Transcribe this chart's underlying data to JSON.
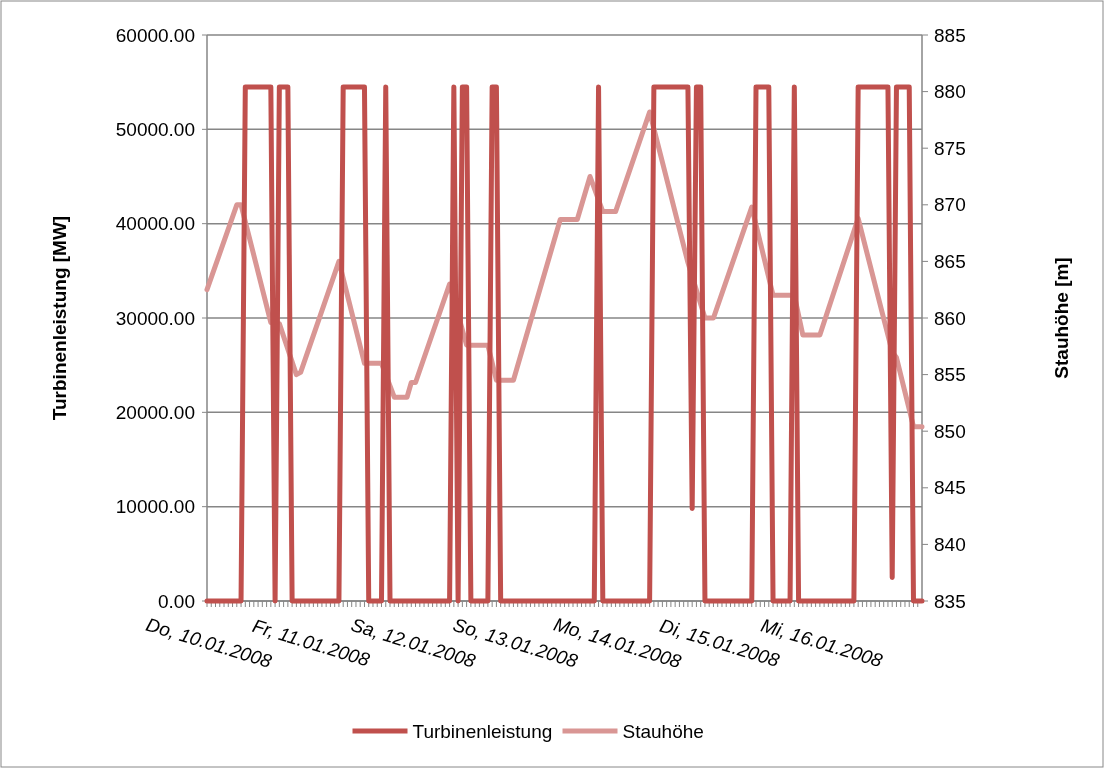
{
  "chart_data": {
    "type": "line",
    "ylabel": "Turbinenleistung [MW]",
    "y2label": "Stauhöhe [m]",
    "xlim": [
      "2008-01-10T00:00",
      "2008-01-17T00:00"
    ],
    "xticks": [
      {
        "value": "2008-01-10",
        "label": "Do, 10.01.2008"
      },
      {
        "value": "2008-01-10T01:00",
        "label": null
      },
      {
        "value": "2008-01-10T02:00",
        "label": null
      },
      {
        "value": "2008-01-10T03:00",
        "label": null
      },
      {
        "value": "2008-01-10T04:00",
        "label": null
      },
      {
        "value": "2008-01-10T05:00",
        "label": null
      },
      {
        "value": "2008-01-10T06:00",
        "label": null
      },
      {
        "value": "2008-01-10T07:00",
        "label": null
      },
      {
        "value": "2008-01-10T08:00",
        "label": null
      },
      {
        "value": "2008-01-10T09:00",
        "label": null
      },
      {
        "value": "2008-01-10T10:00",
        "label": null
      },
      {
        "value": "2008-01-10T11:00",
        "label": null
      },
      {
        "value": "2008-01-10T12:00",
        "label": null
      },
      {
        "value": "2008-01-10T13:00",
        "label": null
      },
      {
        "value": "2008-01-10T14:00",
        "label": null
      },
      {
        "value": "2008-01-10T15:00",
        "label": null
      },
      {
        "value": "2008-01-10T16:00",
        "label": null
      },
      {
        "value": "2008-01-10T17:00",
        "label": null
      },
      {
        "value": "2008-01-10T18:00",
        "label": null
      },
      {
        "value": "2008-01-10T19:00",
        "label": null
      },
      {
        "value": "2008-01-10T20:00",
        "label": null
      },
      {
        "value": "2008-01-10T21:00",
        "label": null
      },
      {
        "value": "2008-01-10T22:00",
        "label": null
      },
      {
        "value": "2008-01-10T23:00",
        "label": null
      },
      {
        "value": "2008-01-11",
        "label": "Fr, 11.01.2008"
      },
      {
        "value": "2008-01-11T01:00",
        "label": null
      },
      {
        "value": "2008-01-11T02:00",
        "label": null
      },
      {
        "value": "2008-01-11T03:00",
        "label": null
      },
      {
        "value": "2008-01-11T04:00",
        "label": null
      },
      {
        "value": "2008-01-11T05:00",
        "label": null
      },
      {
        "value": "2008-01-11T06:00",
        "label": null
      },
      {
        "value": "2008-01-11T07:00",
        "label": null
      },
      {
        "value": "2008-01-11T08:00",
        "label": null
      },
      {
        "value": "2008-01-11T09:00",
        "label": null
      },
      {
        "value": "2008-01-11T10:00",
        "label": null
      },
      {
        "value": "2008-01-11T11:00",
        "label": null
      },
      {
        "value": "2008-01-11T12:00",
        "label": null
      },
      {
        "value": "2008-01-11T13:00",
        "label": null
      },
      {
        "value": "2008-01-11T14:00",
        "label": null
      },
      {
        "value": "2008-01-11T15:00",
        "label": null
      },
      {
        "value": "2008-01-11T16:00",
        "label": null
      },
      {
        "value": "2008-01-11T17:00",
        "label": null
      },
      {
        "value": "2008-01-11T18:00",
        "label": null
      },
      {
        "value": "2008-01-11T19:00",
        "label": null
      },
      {
        "value": "2008-01-11T20:00",
        "label": null
      },
      {
        "value": "2008-01-11T21:00",
        "label": null
      },
      {
        "value": "2008-01-11T22:00",
        "label": null
      },
      {
        "value": "2008-01-11T23:00",
        "label": null
      },
      {
        "value": "2008-01-12",
        "label": "Sa, 12.01.2008"
      },
      {
        "value": "2008-01-12T01:00",
        "label": null
      },
      {
        "value": "2008-01-12T02:00",
        "label": null
      },
      {
        "value": "2008-01-12T03:00",
        "label": null
      },
      {
        "value": "2008-01-12T04:00",
        "label": null
      },
      {
        "value": "2008-01-12T05:00",
        "label": null
      },
      {
        "value": "2008-01-12T06:00",
        "label": null
      },
      {
        "value": "2008-01-12T07:00",
        "label": null
      },
      {
        "value": "2008-01-12T08:00",
        "label": null
      },
      {
        "value": "2008-01-12T09:00",
        "label": null
      },
      {
        "value": "2008-01-12T10:00",
        "label": null
      },
      {
        "value": "2008-01-12T11:00",
        "label": null
      },
      {
        "value": "2008-01-12T12:00",
        "label": null
      },
      {
        "value": "2008-01-12T13:00",
        "label": null
      },
      {
        "value": "2008-01-12T14:00",
        "label": null
      },
      {
        "value": "2008-01-12T15:00",
        "label": null
      },
      {
        "value": "2008-01-12T16:00",
        "label": null
      },
      {
        "value": "2008-01-12T17:00",
        "label": null
      },
      {
        "value": "2008-01-12T18:00",
        "label": null
      },
      {
        "value": "2008-01-12T19:00",
        "label": null
      },
      {
        "value": "2008-01-12T20:00",
        "label": null
      },
      {
        "value": "2008-01-12T21:00",
        "label": null
      },
      {
        "value": "2008-01-12T22:00",
        "label": null
      },
      {
        "value": "2008-01-12T23:00",
        "label": null
      },
      {
        "value": "2008-01-13",
        "label": "So, 13.01.2008"
      },
      {
        "value": "2008-01-13T01:00",
        "label": null
      },
      {
        "value": "2008-01-13T02:00",
        "label": null
      },
      {
        "value": "2008-01-13T03:00",
        "label": null
      },
      {
        "value": "2008-01-13T04:00",
        "label": null
      },
      {
        "value": "2008-01-13T05:00",
        "label": null
      },
      {
        "value": "2008-01-13T06:00",
        "label": null
      },
      {
        "value": "2008-01-13T07:00",
        "label": null
      },
      {
        "value": "2008-01-13T08:00",
        "label": null
      },
      {
        "value": "2008-01-13T09:00",
        "label": null
      },
      {
        "value": "2008-01-13T10:00",
        "label": null
      },
      {
        "value": "2008-01-13T11:00",
        "label": null
      },
      {
        "value": "2008-01-13T12:00",
        "label": null
      },
      {
        "value": "2008-01-13T13:00",
        "label": null
      },
      {
        "value": "2008-01-13T14:00",
        "label": null
      },
      {
        "value": "2008-01-13T15:00",
        "label": null
      },
      {
        "value": "2008-01-13T16:00",
        "label": null
      },
      {
        "value": "2008-01-13T17:00",
        "label": null
      },
      {
        "value": "2008-01-13T18:00",
        "label": null
      },
      {
        "value": "2008-01-13T19:00",
        "label": null
      },
      {
        "value": "2008-01-13T20:00",
        "label": null
      },
      {
        "value": "2008-01-13T21:00",
        "label": null
      },
      {
        "value": "2008-01-13T22:00",
        "label": null
      },
      {
        "value": "2008-01-13T23:00",
        "label": null
      },
      {
        "value": "2008-01-14",
        "label": "Mo, 14.01.2008"
      },
      {
        "value": "2008-01-14T01:00",
        "label": null
      },
      {
        "value": "2008-01-14T02:00",
        "label": null
      },
      {
        "value": "2008-01-14T03:00",
        "label": null
      },
      {
        "value": "2008-01-14T04:00",
        "label": null
      },
      {
        "value": "2008-01-14T05:00",
        "label": null
      },
      {
        "value": "2008-01-14T06:00",
        "label": null
      },
      {
        "value": "2008-01-14T07:00",
        "label": null
      },
      {
        "value": "2008-01-14T08:00",
        "label": null
      },
      {
        "value": "2008-01-14T09:00",
        "label": null
      },
      {
        "value": "2008-01-14T10:00",
        "label": null
      },
      {
        "value": "2008-01-14T11:00",
        "label": null
      },
      {
        "value": "2008-01-14T12:00",
        "label": null
      },
      {
        "value": "2008-01-14T13:00",
        "label": null
      },
      {
        "value": "2008-01-14T14:00",
        "label": null
      },
      {
        "value": "2008-01-14T15:00",
        "label": null
      },
      {
        "value": "2008-01-14T16:00",
        "label": null
      },
      {
        "value": "2008-01-14T17:00",
        "label": null
      },
      {
        "value": "2008-01-14T18:00",
        "label": null
      },
      {
        "value": "2008-01-14T19:00",
        "label": null
      },
      {
        "value": "2008-01-14T20:00",
        "label": null
      },
      {
        "value": "2008-01-14T21:00",
        "label": null
      },
      {
        "value": "2008-01-14T22:00",
        "label": null
      },
      {
        "value": "2008-01-14T23:00",
        "label": null
      },
      {
        "value": "2008-01-15",
        "label": "Di, 15.01.2008"
      },
      {
        "value": "2008-01-15T01:00",
        "label": null
      },
      {
        "value": "2008-01-15T02:00",
        "label": null
      },
      {
        "value": "2008-01-15T03:00",
        "label": null
      },
      {
        "value": "2008-01-15T04:00",
        "label": null
      },
      {
        "value": "2008-01-15T05:00",
        "label": null
      },
      {
        "value": "2008-01-15T06:00",
        "label": null
      },
      {
        "value": "2008-01-15T07:00",
        "label": null
      },
      {
        "value": "2008-01-15T08:00",
        "label": null
      },
      {
        "value": "2008-01-15T09:00",
        "label": null
      },
      {
        "value": "2008-01-15T10:00",
        "label": null
      },
      {
        "value": "2008-01-15T11:00",
        "label": null
      },
      {
        "value": "2008-01-15T12:00",
        "label": null
      },
      {
        "value": "2008-01-15T13:00",
        "label": null
      },
      {
        "value": "2008-01-15T14:00",
        "label": null
      },
      {
        "value": "2008-01-15T15:00",
        "label": null
      },
      {
        "value": "2008-01-15T16:00",
        "label": null
      },
      {
        "value": "2008-01-15T17:00",
        "label": null
      },
      {
        "value": "2008-01-15T18:00",
        "label": null
      },
      {
        "value": "2008-01-15T19:00",
        "label": null
      },
      {
        "value": "2008-01-15T20:00",
        "label": null
      },
      {
        "value": "2008-01-15T21:00",
        "label": null
      },
      {
        "value": "2008-01-15T22:00",
        "label": null
      },
      {
        "value": "2008-01-15T23:00",
        "label": null
      },
      {
        "value": "2008-01-16",
        "label": "Mi, 16.01.2008"
      },
      {
        "value": "2008-01-16T01:00",
        "label": null
      },
      {
        "value": "2008-01-16T02:00",
        "label": null
      },
      {
        "value": "2008-01-16T03:00",
        "label": null
      },
      {
        "value": "2008-01-16T04:00",
        "label": null
      },
      {
        "value": "2008-01-16T05:00",
        "label": null
      },
      {
        "value": "2008-01-16T06:00",
        "label": null
      },
      {
        "value": "2008-01-16T07:00",
        "label": null
      },
      {
        "value": "2008-01-16T08:00",
        "label": null
      },
      {
        "value": "2008-01-16T09:00",
        "label": null
      },
      {
        "value": "2008-01-16T10:00",
        "label": null
      },
      {
        "value": "2008-01-16T11:00",
        "label": null
      },
      {
        "value": "2008-01-16T12:00",
        "label": null
      },
      {
        "value": "2008-01-16T13:00",
        "label": null
      },
      {
        "value": "2008-01-16T14:00",
        "label": null
      },
      {
        "value": "2008-01-16T15:00",
        "label": null
      },
      {
        "value": "2008-01-16T16:00",
        "label": null
      },
      {
        "value": "2008-01-16T17:00",
        "label": null
      },
      {
        "value": "2008-01-16T18:00",
        "label": null
      },
      {
        "value": "2008-01-16T19:00",
        "label": null
      },
      {
        "value": "2008-01-16T20:00",
        "label": null
      },
      {
        "value": "2008-01-16T21:00",
        "label": null
      },
      {
        "value": "2008-01-16T22:00",
        "label": null
      },
      {
        "value": "2008-01-16T23:00",
        "label": null
      }
    ],
    "ylim": [
      0,
      60000
    ],
    "yticks": [
      {
        "value": 0,
        "label": "0.00"
      },
      {
        "value": 10000,
        "label": "10000.00"
      },
      {
        "value": 20000,
        "label": "20000.00"
      },
      {
        "value": 30000,
        "label": "30000.00"
      },
      {
        "value": 40000,
        "label": "40000.00"
      },
      {
        "value": 50000,
        "label": "50000.00"
      },
      {
        "value": 60000,
        "label": "60000.00"
      }
    ],
    "y2lim": [
      835,
      885
    ],
    "y2ticks": [
      835,
      840,
      845,
      850,
      855,
      860,
      865,
      870,
      875,
      880,
      885
    ],
    "grid": "y",
    "legend": "bottom",
    "marker": "none",
    "line_style": "solid",
    "series": [
      {
        "name": "Turbinenleistung",
        "color": "#c0504d",
        "x": [
          "2008-01-10T00:00",
          "2008-01-10T08:00",
          "2008-01-10T09:00",
          "2008-01-10T15:00",
          "2008-01-10T16:00",
          "2008-01-10T17:00",
          "2008-01-10T19:00",
          "2008-01-10T20:00",
          "2008-01-11T07:00",
          "2008-01-11T08:00",
          "2008-01-11T13:00",
          "2008-01-11T14:00",
          "2008-01-11T17:00",
          "2008-01-11T18:00",
          "2008-01-11T19:00",
          "2008-01-12T09:00",
          "2008-01-12T10:00",
          "2008-01-12T11:00",
          "2008-01-12T12:00",
          "2008-01-12T13:00",
          "2008-01-12T14:00",
          "2008-01-12T18:00",
          "2008-01-12T19:00",
          "2008-01-12T20:00",
          "2008-01-12T21:00",
          "2008-01-13T19:00",
          "2008-01-13T20:00",
          "2008-01-13T21:00",
          "2008-01-14T08:00",
          "2008-01-14T09:00",
          "2008-01-14T17:00",
          "2008-01-14T18:00",
          "2008-01-14T19:00",
          "2008-01-14T20:00",
          "2008-01-14T21:00",
          "2008-01-15T08:00",
          "2008-01-15T09:00",
          "2008-01-15T12:00",
          "2008-01-15T13:00",
          "2008-01-15T17:00",
          "2008-01-15T18:00",
          "2008-01-15T19:00",
          "2008-01-16T08:00",
          "2008-01-16T09:00",
          "2008-01-16T16:00",
          "2008-01-16T17:00",
          "2008-01-16T18:00",
          "2008-01-16T21:00",
          "2008-01-16T22:00",
          "2008-01-17T00:00"
        ],
        "values": [
          0,
          0,
          54500,
          54500,
          0,
          54500,
          54500,
          0,
          0,
          54500,
          54500,
          0,
          0,
          54500,
          0,
          0,
          54500,
          0,
          54500,
          54500,
          0,
          0,
          54500,
          54500,
          0,
          0,
          54500,
          0,
          0,
          54500,
          54500,
          9800,
          54500,
          54500,
          0,
          0,
          54500,
          54500,
          0,
          0,
          54500,
          0,
          0,
          54500,
          54500,
          2500,
          54500,
          54500,
          0,
          0
        ]
      },
      {
        "name": "Stauhöhe",
        "color": "#d99694",
        "axis": "y2",
        "x": [
          "2008-01-10T00:00",
          "2008-01-10T07:00",
          "2008-01-10T08:00",
          "2008-01-10T15:00",
          "2008-01-10T17:00",
          "2008-01-10T21:00",
          "2008-01-10T22:00",
          "2008-01-11T07:00",
          "2008-01-11T13:00",
          "2008-01-11T17:00",
          "2008-01-11T20:00",
          "2008-01-11T23:00",
          "2008-01-12T00:00",
          "2008-01-12T01:00",
          "2008-01-12T09:00",
          "2008-01-12T13:00",
          "2008-01-12T18:00",
          "2008-01-12T20:00",
          "2008-01-13T00:00",
          "2008-01-13T11:00",
          "2008-01-13T15:00",
          "2008-01-13T18:00",
          "2008-01-13T21:00",
          "2008-01-14T00:00",
          "2008-01-14T08:00",
          "2008-01-14T17:00",
          "2008-01-14T21:00",
          "2008-01-14T23:00",
          "2008-01-15T08:00",
          "2008-01-15T13:00",
          "2008-01-15T18:00",
          "2008-01-15T20:00",
          "2008-01-16T00:00",
          "2008-01-16T09:00",
          "2008-01-16T17:00",
          "2008-01-16T18:00",
          "2008-01-16T22:00",
          "2008-01-17T00:00"
        ],
        "values": [
          862.5,
          870,
          870,
          859.6,
          859.5,
          855,
          855.2,
          865,
          856,
          856,
          853,
          853,
          854.3,
          854.3,
          863,
          857.6,
          857.6,
          854.5,
          854.5,
          868.7,
          868.7,
          872.5,
          869.4,
          869.4,
          878.2,
          864.9,
          860,
          860,
          869.8,
          862,
          862,
          858.5,
          858.5,
          868.8,
          857,
          856.5,
          850.4,
          850.4
        ]
      }
    ]
  }
}
